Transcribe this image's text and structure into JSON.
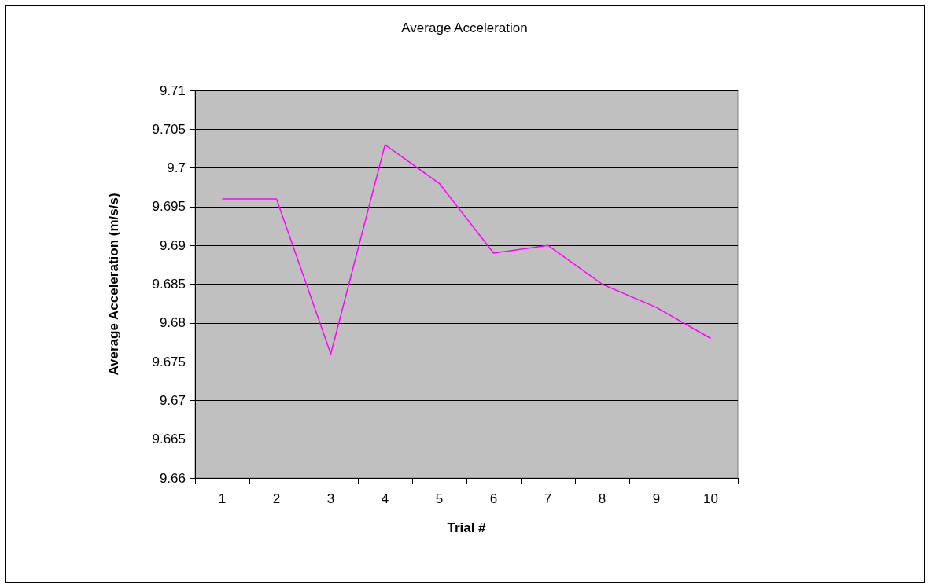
{
  "chart_data": {
    "type": "line",
    "title": "Average Acceleration",
    "xlabel": "Trial #",
    "ylabel": "Average Acceleration (m/s/s)",
    "categories": [
      "1",
      "2",
      "3",
      "4",
      "5",
      "6",
      "7",
      "8",
      "9",
      "10"
    ],
    "series": [
      {
        "color": "#ff00ff",
        "values": [
          9.696,
          9.696,
          9.676,
          9.703,
          9.698,
          9.689,
          9.69,
          9.685,
          9.682,
          9.678
        ]
      }
    ],
    "ylim": [
      9.66,
      9.71
    ],
    "yticks": [
      9.66,
      9.665,
      9.67,
      9.675,
      9.68,
      9.685,
      9.69,
      9.695,
      9.7,
      9.705,
      9.71
    ],
    "grid": "y",
    "marker": "none",
    "line_style": "solid"
  }
}
